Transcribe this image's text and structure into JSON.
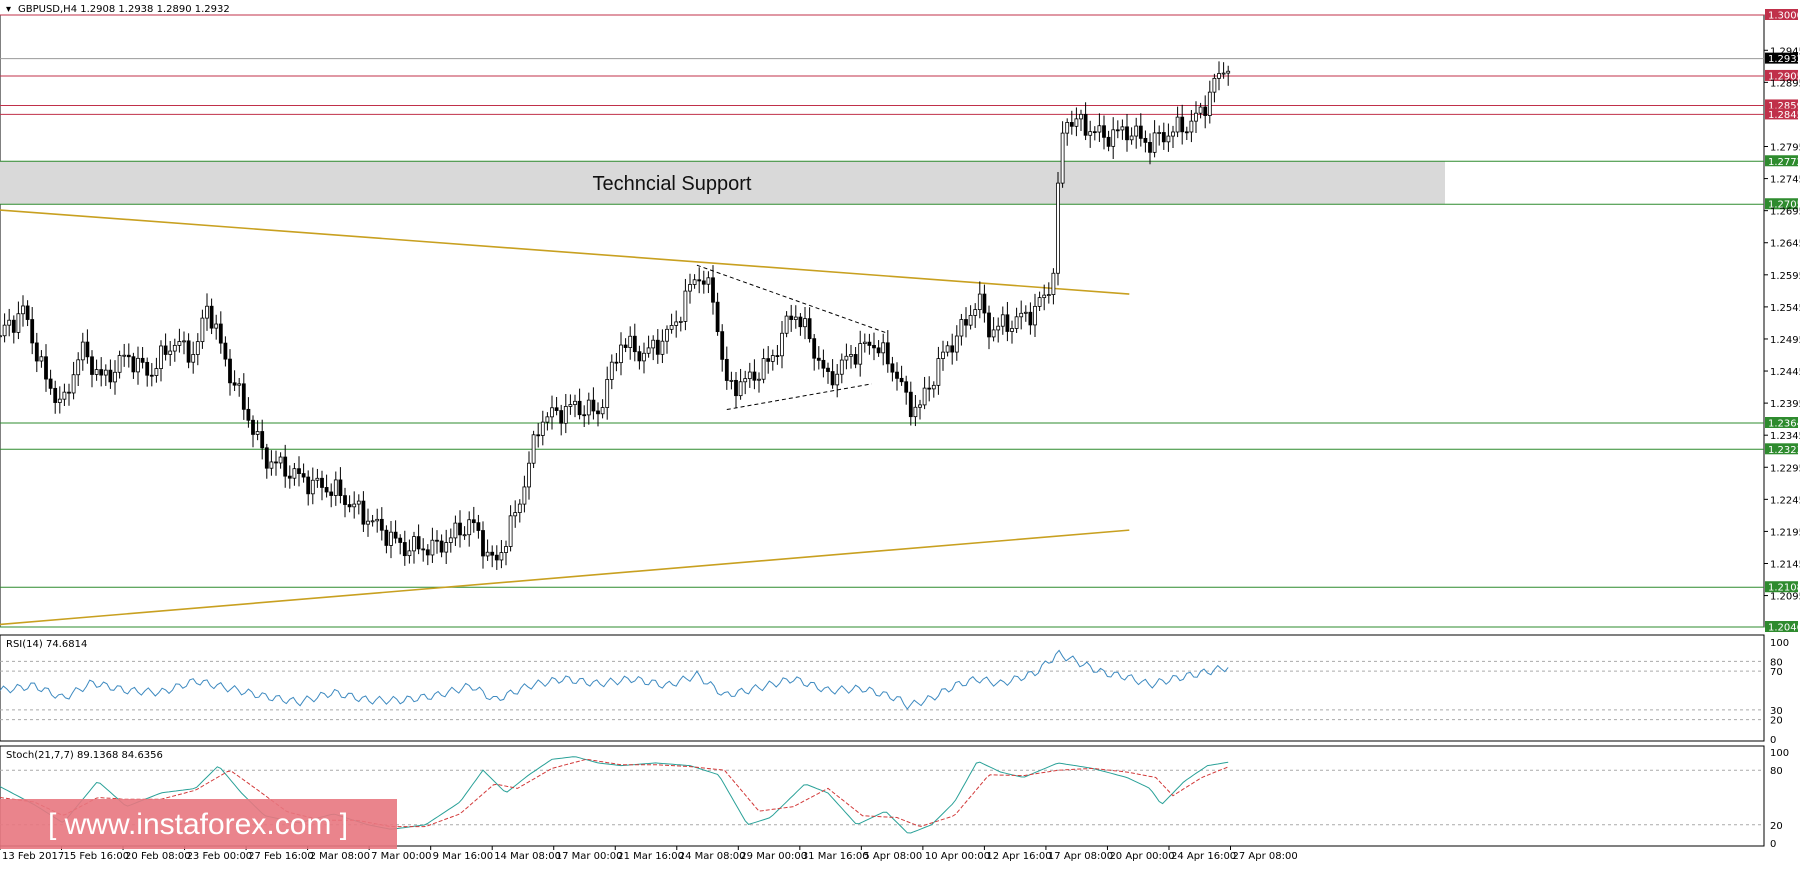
{
  "header": {
    "symbol_line": "GBPUSD,H4  1.2908 1.2938 1.2890 1.2932"
  },
  "colors": {
    "resistance": "#c0304a",
    "support": "#2e8b2e",
    "trendline": "#c8a020",
    "zone_fill": "#d9d9d9",
    "rsi_line": "#3e8ac0",
    "stoch_main": "#2aa198",
    "stoch_signal": "#d23a3a",
    "watermark_bg": "#e8777f"
  },
  "chart_data": [
    {
      "type": "candlestick",
      "panel": "price",
      "ylim": [
        1.2046,
        1.3
      ],
      "y_tick_labels": [
        "1.2945",
        "1.2895",
        "1.2795",
        "1.2745",
        "1.2695",
        "1.2645",
        "1.2595",
        "1.2545",
        "1.2495",
        "1.2445",
        "1.2395",
        "1.2345",
        "1.2295",
        "1.2245",
        "1.2195",
        "1.2145",
        "1.2095"
      ],
      "x_tick_labels": [
        "13 Feb 2017",
        "15 Feb 16:00",
        "20 Feb 08:00",
        "23 Feb 00:00",
        "27 Feb 16:00",
        "2 Mar 08:00",
        "7 Mar 00:00",
        "9 Mar 16:00",
        "14 Mar 08:00",
        "17 Mar 00:00",
        "21 Mar 16:00",
        "24 Mar 08:00",
        "29 Mar 00:00",
        "31 Mar 16:00",
        "5 Apr 08:00",
        "10 Apr 00:00",
        "12 Apr 16:00",
        "17 Apr 08:00",
        "20 Apr 00:00",
        "24 Apr 16:00",
        "27 Apr 08:00"
      ],
      "close_path": [
        [
          0,
          1.25
        ],
        [
          20,
          1.254
        ],
        [
          40,
          1.243
        ],
        [
          55,
          1.239
        ],
        [
          70,
          1.248
        ],
        [
          90,
          1.243
        ],
        [
          110,
          1.247
        ],
        [
          130,
          1.244
        ],
        [
          150,
          1.249
        ],
        [
          170,
          1.247
        ],
        [
          180,
          1.255
        ],
        [
          200,
          1.244
        ],
        [
          210,
          1.24
        ],
        [
          230,
          1.231
        ],
        [
          250,
          1.229
        ],
        [
          270,
          1.227
        ],
        [
          290,
          1.226
        ],
        [
          310,
          1.223
        ],
        [
          330,
          1.22
        ],
        [
          350,
          1.217
        ],
        [
          380,
          1.217
        ],
        [
          410,
          1.221
        ],
        [
          430,
          1.214
        ],
        [
          450,
          1.223
        ],
        [
          470,
          1.237
        ],
        [
          500,
          1.239
        ],
        [
          520,
          1.238
        ],
        [
          540,
          1.249
        ],
        [
          560,
          1.247
        ],
        [
          580,
          1.25
        ],
        [
          590,
          1.253
        ],
        [
          606,
          1.26
        ],
        [
          620,
          1.256
        ],
        [
          632,
          1.242
        ],
        [
          650,
          1.243
        ],
        [
          670,
          1.246
        ],
        [
          690,
          1.254
        ],
        [
          700,
          1.251
        ],
        [
          720,
          1.243
        ],
        [
          740,
          1.247
        ],
        [
          760,
          1.249
        ],
        [
          780,
          1.244
        ],
        [
          790,
          1.239
        ],
        [
          800,
          1.239
        ],
        [
          820,
          1.247
        ],
        [
          840,
          1.252
        ],
        [
          850,
          1.256
        ],
        [
          860,
          1.251
        ],
        [
          880,
          1.252
        ],
        [
          900,
          1.254
        ],
        [
          915,
          1.258
        ],
        [
          920,
          1.272
        ],
        [
          925,
          1.284
        ],
        [
          940,
          1.283
        ],
        [
          960,
          1.281
        ],
        [
          980,
          1.282
        ],
        [
          1000,
          1.28
        ],
        [
          1020,
          1.282
        ],
        [
          1035,
          1.283
        ],
        [
          1045,
          1.285
        ],
        [
          1055,
          1.289
        ],
        [
          1070,
          1.2932
        ]
      ],
      "support_zone": {
        "label": "Techncial Support",
        "low": 1.2705,
        "high": 1.2772
      },
      "horizontal_levels": [
        {
          "value": 1.3,
          "label": "1.3000",
          "kind": "resistance"
        },
        {
          "value": 1.2932,
          "label": "1.2932",
          "kind": "current"
        },
        {
          "value": 1.2905,
          "label": "1.2905",
          "kind": "resistance"
        },
        {
          "value": 1.2859,
          "label": "1.2859",
          "kind": "resistance"
        },
        {
          "value": 1.2845,
          "label": "1.2845",
          "kind": "resistance"
        },
        {
          "value": 1.2772,
          "label": "1.2772",
          "kind": "support"
        },
        {
          "value": 1.2705,
          "label": "1.2705",
          "kind": "support"
        },
        {
          "value": 1.2364,
          "label": "1.2364",
          "kind": "support"
        },
        {
          "value": 1.2323,
          "label": "1.2323",
          "kind": "support"
        },
        {
          "value": 1.2108,
          "label": "1.2108",
          "kind": "support"
        },
        {
          "value": 1.2046,
          "label": "1.2046",
          "kind": "support"
        }
      ],
      "trendlines": [
        {
          "from": [
            0,
            1.2696
          ],
          "to": [
            982,
            1.2565
          ],
          "style": "solid"
        },
        {
          "from": [
            0,
            1.205
          ],
          "to": [
            982,
            1.2197
          ],
          "style": "solid"
        },
        {
          "from": [
            606,
            1.261
          ],
          "to": [
            770,
            1.2505
          ],
          "style": "dashed"
        },
        {
          "from": [
            632,
            1.2385
          ],
          "to": [
            758,
            1.2425
          ],
          "style": "dashed"
        }
      ]
    },
    {
      "type": "line",
      "panel": "rsi",
      "label": "RSI(14) 74.6814",
      "ylim": [
        0,
        100
      ],
      "y_tick_labels": [
        "100",
        "80",
        "70",
        "30",
        "20",
        "0"
      ],
      "levels": [
        80,
        70,
        30,
        20
      ],
      "path": [
        [
          0,
          50
        ],
        [
          30,
          55
        ],
        [
          55,
          42
        ],
        [
          80,
          58
        ],
        [
          110,
          50
        ],
        [
          140,
          48
        ],
        [
          170,
          60
        ],
        [
          200,
          52
        ],
        [
          230,
          44
        ],
        [
          260,
          38
        ],
        [
          290,
          48
        ],
        [
          320,
          40
        ],
        [
          350,
          40
        ],
        [
          380,
          45
        ],
        [
          410,
          55
        ],
        [
          430,
          40
        ],
        [
          460,
          55
        ],
        [
          490,
          62
        ],
        [
          520,
          57
        ],
        [
          550,
          62
        ],
        [
          580,
          55
        ],
        [
          606,
          66
        ],
        [
          630,
          45
        ],
        [
          650,
          50
        ],
        [
          690,
          62
        ],
        [
          720,
          50
        ],
        [
          750,
          52
        ],
        [
          780,
          42
        ],
        [
          790,
          34
        ],
        [
          810,
          42
        ],
        [
          830,
          55
        ],
        [
          850,
          62
        ],
        [
          870,
          57
        ],
        [
          900,
          68
        ],
        [
          920,
          88
        ],
        [
          940,
          78
        ],
        [
          960,
          68
        ],
        [
          980,
          64
        ],
        [
          1000,
          56
        ],
        [
          1020,
          62
        ],
        [
          1045,
          68
        ],
        [
          1070,
          74.68
        ]
      ]
    },
    {
      "type": "line",
      "panel": "stochastic",
      "label": "Stoch(21,7,7) 89.1368 84.6356",
      "ylim": [
        0,
        100
      ],
      "y_tick_labels": [
        "100",
        "80",
        "20",
        "0"
      ],
      "levels": [
        80,
        20
      ],
      "series": [
        {
          "name": "main",
          "path": [
            [
              0,
              62
            ],
            [
              30,
              42
            ],
            [
              55,
              22
            ],
            [
              85,
              68
            ],
            [
              110,
              40
            ],
            [
              140,
              55
            ],
            [
              170,
              60
            ],
            [
              190,
              85
            ],
            [
              210,
              55
            ],
            [
              230,
              30
            ],
            [
              260,
              22
            ],
            [
              290,
              32
            ],
            [
              320,
              20
            ],
            [
              340,
              15
            ],
            [
              370,
              20
            ],
            [
              400,
              45
            ],
            [
              420,
              80
            ],
            [
              440,
              55
            ],
            [
              460,
              75
            ],
            [
              480,
              92
            ],
            [
              500,
              95
            ],
            [
              520,
              88
            ],
            [
              540,
              85
            ],
            [
              570,
              88
            ],
            [
              600,
              85
            ],
            [
              625,
              75
            ],
            [
              650,
              20
            ],
            [
              670,
              28
            ],
            [
              700,
              65
            ],
            [
              720,
              55
            ],
            [
              745,
              20
            ],
            [
              770,
              35
            ],
            [
              790,
              10
            ],
            [
              810,
              20
            ],
            [
              830,
              45
            ],
            [
              850,
              90
            ],
            [
              870,
              78
            ],
            [
              890,
              72
            ],
            [
              920,
              88
            ],
            [
              950,
              82
            ],
            [
              980,
              72
            ],
            [
              1000,
              60
            ],
            [
              1010,
              42
            ],
            [
              1030,
              68
            ],
            [
              1050,
              85
            ],
            [
              1070,
              89.14
            ]
          ]
        },
        {
          "name": "signal",
          "path": [
            [
              0,
              50
            ],
            [
              30,
              45
            ],
            [
              55,
              30
            ],
            [
              85,
              50
            ],
            [
              110,
              48
            ],
            [
              140,
              48
            ],
            [
              170,
              58
            ],
            [
              200,
              80
            ],
            [
              220,
              62
            ],
            [
              250,
              34
            ],
            [
              280,
              25
            ],
            [
              310,
              25
            ],
            [
              340,
              18
            ],
            [
              370,
              18
            ],
            [
              400,
              32
            ],
            [
              430,
              65
            ],
            [
              450,
              60
            ],
            [
              480,
              82
            ],
            [
              510,
              92
            ],
            [
              540,
              86
            ],
            [
              570,
              86
            ],
            [
              600,
              84
            ],
            [
              630,
              80
            ],
            [
              660,
              35
            ],
            [
              690,
              40
            ],
            [
              720,
              60
            ],
            [
              750,
              30
            ],
            [
              780,
              28
            ],
            [
              800,
              18
            ],
            [
              830,
              30
            ],
            [
              860,
              75
            ],
            [
              890,
              74
            ],
            [
              920,
              80
            ],
            [
              950,
              82
            ],
            [
              980,
              78
            ],
            [
              1005,
              72
            ],
            [
              1020,
              52
            ],
            [
              1045,
              72
            ],
            [
              1070,
              84.64
            ]
          ]
        }
      ]
    }
  ],
  "watermark": {
    "text": "[ www.instaforex.com ]"
  }
}
